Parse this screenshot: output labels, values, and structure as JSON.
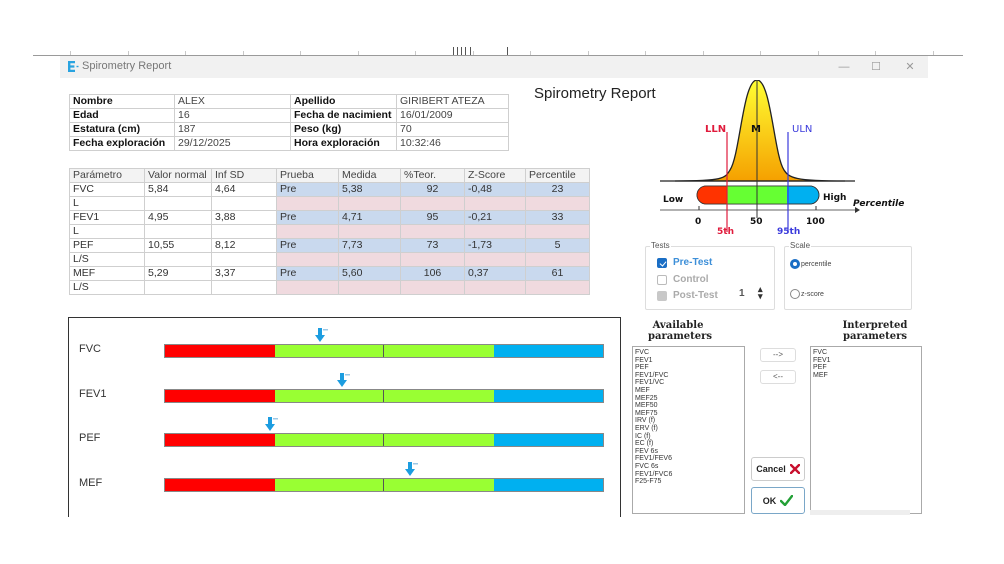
{
  "window": {
    "title": "Spirometry Report",
    "controls": {
      "minimize": "—",
      "maximize": "☐",
      "close": "✕"
    }
  },
  "patient": {
    "rows": [
      {
        "label1": "Nombre",
        "value1": "ALEX",
        "label2": "Apellido",
        "value2": "GIRIBERT ATEZA"
      },
      {
        "label1": "Edad",
        "value1": " 16",
        "label2": "Fecha de nacimient",
        "value2": "16/01/2009"
      },
      {
        "label1": "Estatura (cm)",
        "value1": "187",
        "label2": "Peso (kg)",
        "value2": "70"
      },
      {
        "label1": "Fecha exploración",
        "value1": "29/12/2025",
        "label2": "Hora exploración",
        "value2": "10:32:46"
      }
    ]
  },
  "report_title": "Spirometry Report",
  "params_table": {
    "headers": [
      "Parámetro",
      "Valor normal",
      "Inf SD",
      "Prueba",
      "Medida",
      "%Teor.",
      "Z-Score",
      "Percentile"
    ],
    "rows": [
      {
        "param": "FVC",
        "unit": "L",
        "normal": "5,84",
        "inf_sd": "4,64",
        "prueba": "Pre",
        "medida": "5,38",
        "teor": "92",
        "zscore": "-0,48",
        "percentile": "23"
      },
      {
        "param": "FEV1",
        "unit": "L",
        "normal": "4,95",
        "inf_sd": "3,88",
        "prueba": "Pre",
        "medida": "4,71",
        "teor": "95",
        "zscore": "-0,21",
        "percentile": "33"
      },
      {
        "param": "PEF",
        "unit": "L/S",
        "normal": "10,55",
        "inf_sd": "8,12",
        "prueba": "Pre",
        "medida": "7,73",
        "teor": "73",
        "zscore": "-1,73",
        "percentile": "5"
      },
      {
        "param": "MEF",
        "unit": "L/S",
        "normal": " 5,29",
        "inf_sd": " 3,37",
        "prueba": "Pre",
        "medida": " 5,60",
        "teor": "106",
        "zscore": "0,37",
        "percentile": "61"
      }
    ]
  },
  "legend_diagram": {
    "lln": "LLN",
    "m": "M",
    "uln": "ULN",
    "low": "Low",
    "high": "High",
    "axis_label": "Percentile",
    "ticks": [
      "0",
      "50",
      "100"
    ],
    "p5": "5th",
    "p95": "95th",
    "colors": {
      "low": "#ff3300",
      "normal": "#66ff33",
      "high": "#00b0f0",
      "lln": "#e01b3c",
      "uln": "#3b3bdc"
    }
  },
  "bars": [
    {
      "label": "FVC",
      "marker_pct": 35.5
    },
    {
      "label": "FEV1",
      "marker_pct": 40.5
    },
    {
      "label": "PEF",
      "marker_pct": 24
    },
    {
      "label": "MEF",
      "marker_pct": 56
    }
  ],
  "tests": {
    "legend": "Tests",
    "pre": "Pre-Test",
    "control": "Control",
    "post": "Post-Test",
    "post_count": "1"
  },
  "scale": {
    "legend": "Scale",
    "percentile": "percentile",
    "zscore": "z-score"
  },
  "available": {
    "label_line1": "Available",
    "label_line2": "parameters",
    "items": [
      "FVC",
      "FEV1",
      "PEF",
      "FEV1/FVC",
      "FEV1/VC",
      "MEF",
      "MEF25",
      "MEF50",
      "MEF75",
      "IRV (f)",
      "ERV (f)",
      "IC  (f)",
      "EC  (f)",
      "FEV 6s",
      "FEV1/FEV6",
      "FVC 6s",
      "FEV1/FVC6",
      "F25-F75"
    ]
  },
  "interpreted": {
    "label_line1": "Interpreted",
    "label_line2": "parameters",
    "items": [
      "FVC",
      "FEV1",
      "PEF",
      "MEF"
    ]
  },
  "buttons": {
    "add": "-->",
    "remove": "<--",
    "cancel": "Cancel",
    "ok": "OK"
  }
}
